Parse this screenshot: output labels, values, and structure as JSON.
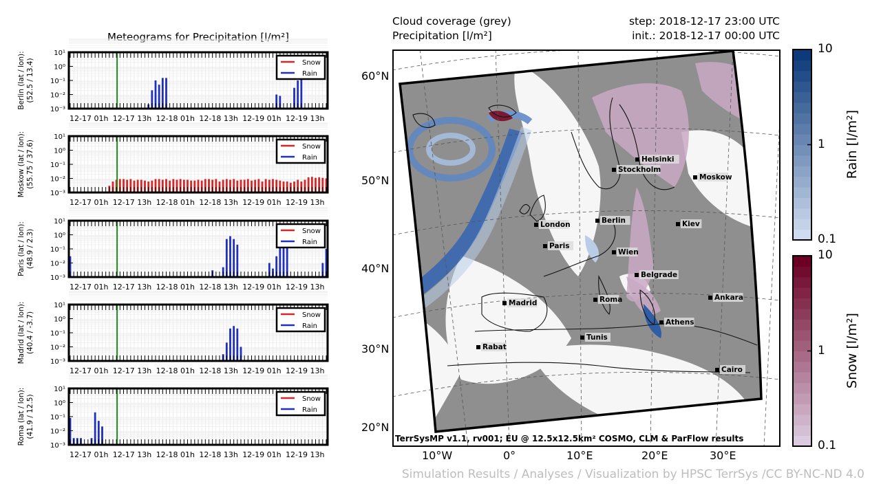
{
  "meteogram": {
    "title": "Meteograms for Precipitation [l/m²]",
    "x_ticks": [
      "12-17 01h",
      "12-17 13h",
      "12-18 01h",
      "12-18 13h",
      "12-19 01h",
      "12-19 13h"
    ],
    "y_ticks": [
      "10¹",
      "10⁰",
      "10⁻¹",
      "10⁻²",
      "10⁻³"
    ],
    "legend": [
      "Snow",
      "Rain"
    ],
    "colors": {
      "snow": "#d62728",
      "rain": "#1f2fbf",
      "now_line": "#1a8a1a"
    }
  },
  "chart_data": [
    {
      "type": "bar",
      "title": "",
      "ylabel": "Berlin (lat / lon):\n(52.5 / 13.4)",
      "yscale": "log",
      "ylim": [
        0.001,
        10
      ],
      "now_hour": 13,
      "x_range_hours": [
        0,
        72
      ],
      "series": [
        {
          "name": "Rain",
          "hours": [
            22,
            23,
            24,
            25,
            26,
            27,
            58,
            59,
            63,
            64,
            65
          ],
          "values": [
            0.002,
            0.02,
            0.1,
            0.05,
            0.15,
            0.15,
            0.01,
            0.008,
            0.03,
            0.1,
            0.15
          ]
        }
      ]
    },
    {
      "type": "bar",
      "title": "",
      "ylabel": "Moskow (lat / lon):\n(55.75 / 37.6)",
      "yscale": "log",
      "ylim": [
        0.001,
        10
      ],
      "now_hour": 13,
      "x_range_hours": [
        0,
        72
      ],
      "series": [
        {
          "name": "Snow",
          "hours": [
            11,
            12,
            13,
            14,
            15,
            16,
            17,
            18,
            19,
            20,
            21,
            22,
            23,
            24,
            25,
            26,
            27,
            28,
            29,
            30,
            31,
            32,
            33,
            34,
            35,
            36,
            37,
            38,
            39,
            40,
            41,
            42,
            43,
            44,
            45,
            46,
            47,
            48,
            49,
            50,
            51,
            52,
            53,
            54,
            55,
            56,
            57,
            58,
            59,
            60,
            61,
            62,
            63,
            64,
            65,
            66,
            67,
            68,
            69,
            70,
            71,
            72
          ],
          "values": [
            0.003,
            0.006,
            0.008,
            0.009,
            0.009,
            0.008,
            0.009,
            0.007,
            0.008,
            0.008,
            0.007,
            0.006,
            0.007,
            0.009,
            0.009,
            0.008,
            0.009,
            0.007,
            0.009,
            0.008,
            0.009,
            0.008,
            0.008,
            0.007,
            0.007,
            0.008,
            0.007,
            0.009,
            0.009,
            0.008,
            0.009,
            0.006,
            0.008,
            0.009,
            0.008,
            0.009,
            0.007,
            0.008,
            0.008,
            0.009,
            0.007,
            0.008,
            0.009,
            0.006,
            0.009,
            0.008,
            0.009,
            0.008,
            0.007,
            0.006,
            0.006,
            0.005,
            0.006,
            0.008,
            0.006,
            0.008,
            0.012,
            0.013,
            0.011,
            0.012,
            0.011,
            0.01
          ]
        }
      ]
    },
    {
      "type": "bar",
      "title": "",
      "ylabel": "Paris (lat / lon):\n(48.9 / 2.3)",
      "yscale": "log",
      "ylim": [
        0.001,
        10
      ],
      "now_hour": 13,
      "x_range_hours": [
        0,
        72
      ],
      "series": [
        {
          "name": "Rain",
          "hours": [
            0,
            40,
            43,
            44,
            45,
            46,
            47,
            56,
            57,
            58,
            59,
            60,
            61,
            71,
            72
          ],
          "values": [
            0.03,
            0.003,
            0.005,
            0.5,
            0.8,
            0.5,
            0.2,
            0.01,
            0.004,
            0.03,
            0.4,
            0.4,
            0.2,
            0.01,
            0.1
          ]
        }
      ]
    },
    {
      "type": "bar",
      "title": "",
      "ylabel": "Madrid (lat / lon):\n(40.4 / -3.7)",
      "yscale": "log",
      "ylim": [
        0.001,
        10
      ],
      "now_hour": 13,
      "x_range_hours": [
        0,
        72
      ],
      "series": [
        {
          "name": "Rain",
          "hours": [
            43,
            44,
            45,
            46,
            47,
            48
          ],
          "values": [
            0.003,
            0.02,
            0.2,
            0.3,
            0.2,
            0.01
          ]
        }
      ]
    },
    {
      "type": "bar",
      "title": "",
      "ylabel": "Roma (lat / lon):\n(41.9 / 12.5)",
      "yscale": "log",
      "ylim": [
        0.001,
        10
      ],
      "now_hour": 13,
      "x_range_hours": [
        0,
        72
      ],
      "series": [
        {
          "name": "Rain",
          "hours": [
            0,
            1,
            2,
            3,
            6,
            7,
            8,
            9
          ],
          "values": [
            0.08,
            0.003,
            0.003,
            0.003,
            0.003,
            0.2,
            0.05,
            0.02
          ]
        }
      ]
    },
    {
      "type": "heatmap",
      "title": "Cloud coverage (grey)\nPrecipitation [l/m²]",
      "step": "step: 2018-12-17 23:00 UTC",
      "init": "init.: 2018-12-17 00:00 UTC",
      "lat_labels": [
        "60°N",
        "50°N",
        "40°N",
        "30°N",
        "20°N"
      ],
      "lon_labels": [
        "10°W",
        "0°",
        "10°E",
        "20°E",
        "30°E"
      ],
      "cities": [
        "Helsinki",
        "Stockholm",
        "Moskow",
        "London",
        "Berlin",
        "Kiev",
        "Paris",
        "Wien",
        "Belgrade",
        "Madrid",
        "Roma",
        "Ankara",
        "Athens",
        "Tunis",
        "Rabat",
        "Cairo"
      ],
      "caption": "TerrSysMP v1.1, rv001; EU @ 12.5x12.5km² COSMO, CLM & ParFlow results",
      "colorbars": [
        {
          "label": "Rain [l/m²]",
          "ticks": [
            "10",
            "1",
            "0.1"
          ],
          "low": "#cfdcef",
          "high": "#0c3a7a"
        },
        {
          "label": "Snow [l/m²]",
          "ticks": [
            "10",
            "1",
            "0.1"
          ],
          "low": "#dccbe0",
          "high": "#6b0024"
        }
      ]
    }
  ],
  "footer": "Simulation Results / Analyses / Visualization by HPSC TerrSys /CC BY-NC-ND 4.0"
}
